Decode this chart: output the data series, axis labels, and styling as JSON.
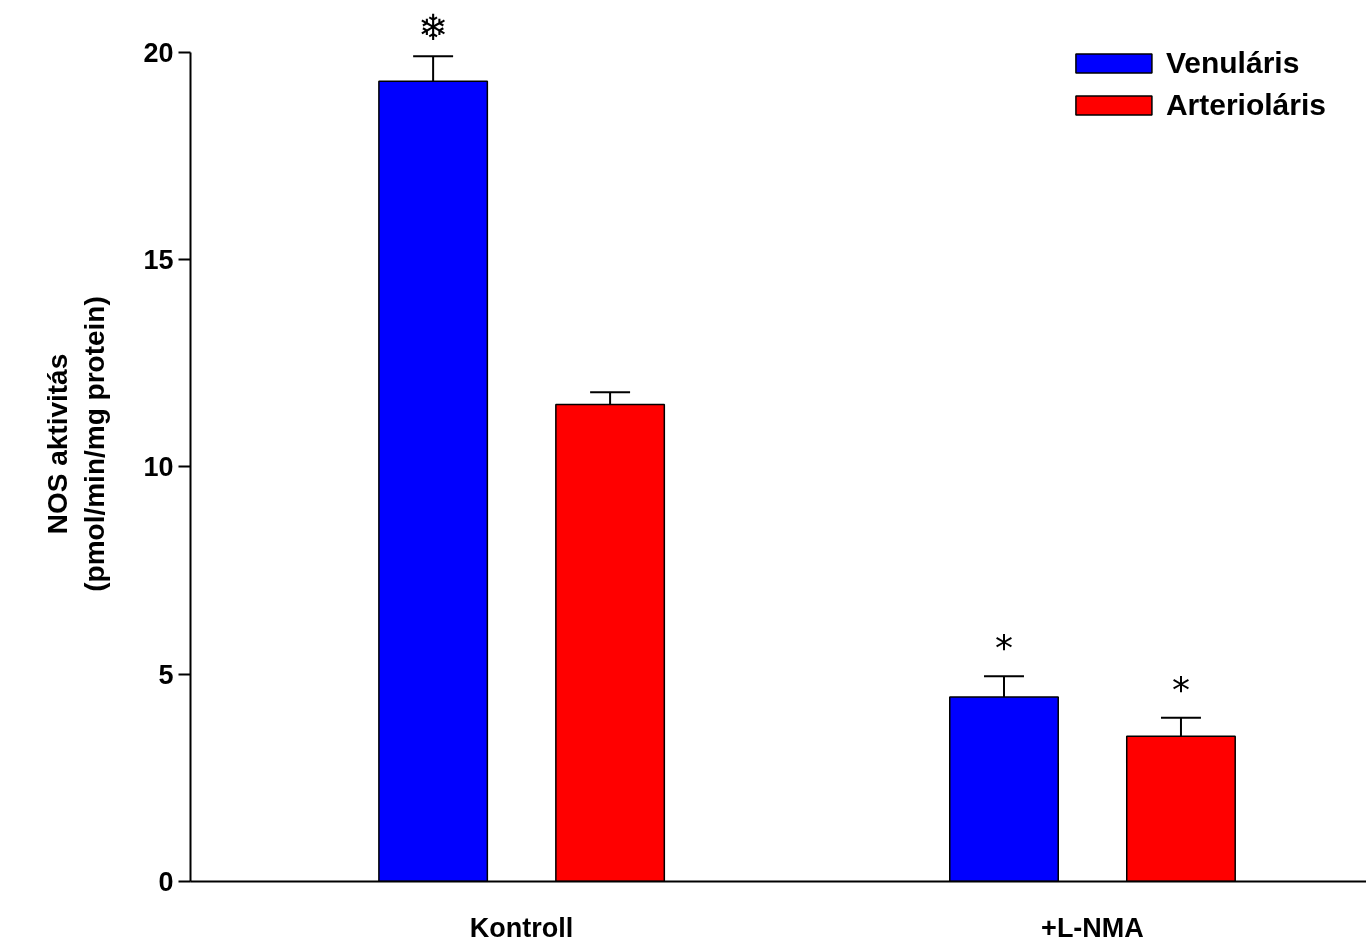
{
  "chart_data": {
    "type": "bar",
    "ylabel": "NOS aktivitás\n(pmol/min/mg protein)",
    "categories": [
      "Kontroll",
      "+L-NMA"
    ],
    "series": [
      {
        "name": "Venuláris",
        "color": "#0000ff",
        "values": [
          19.3,
          4.45
        ],
        "errors": [
          0.6,
          0.5
        ]
      },
      {
        "name": "Arterioláris",
        "color": "#ff0000",
        "values": [
          11.5,
          3.5
        ],
        "errors": [
          0.3,
          0.45
        ]
      }
    ],
    "ylim": [
      0,
      20
    ],
    "yticks": [
      0,
      5,
      10,
      15,
      20
    ],
    "grid": false,
    "legend": "top right",
    "annotations": [
      "❄",
      "*",
      "*"
    ]
  }
}
